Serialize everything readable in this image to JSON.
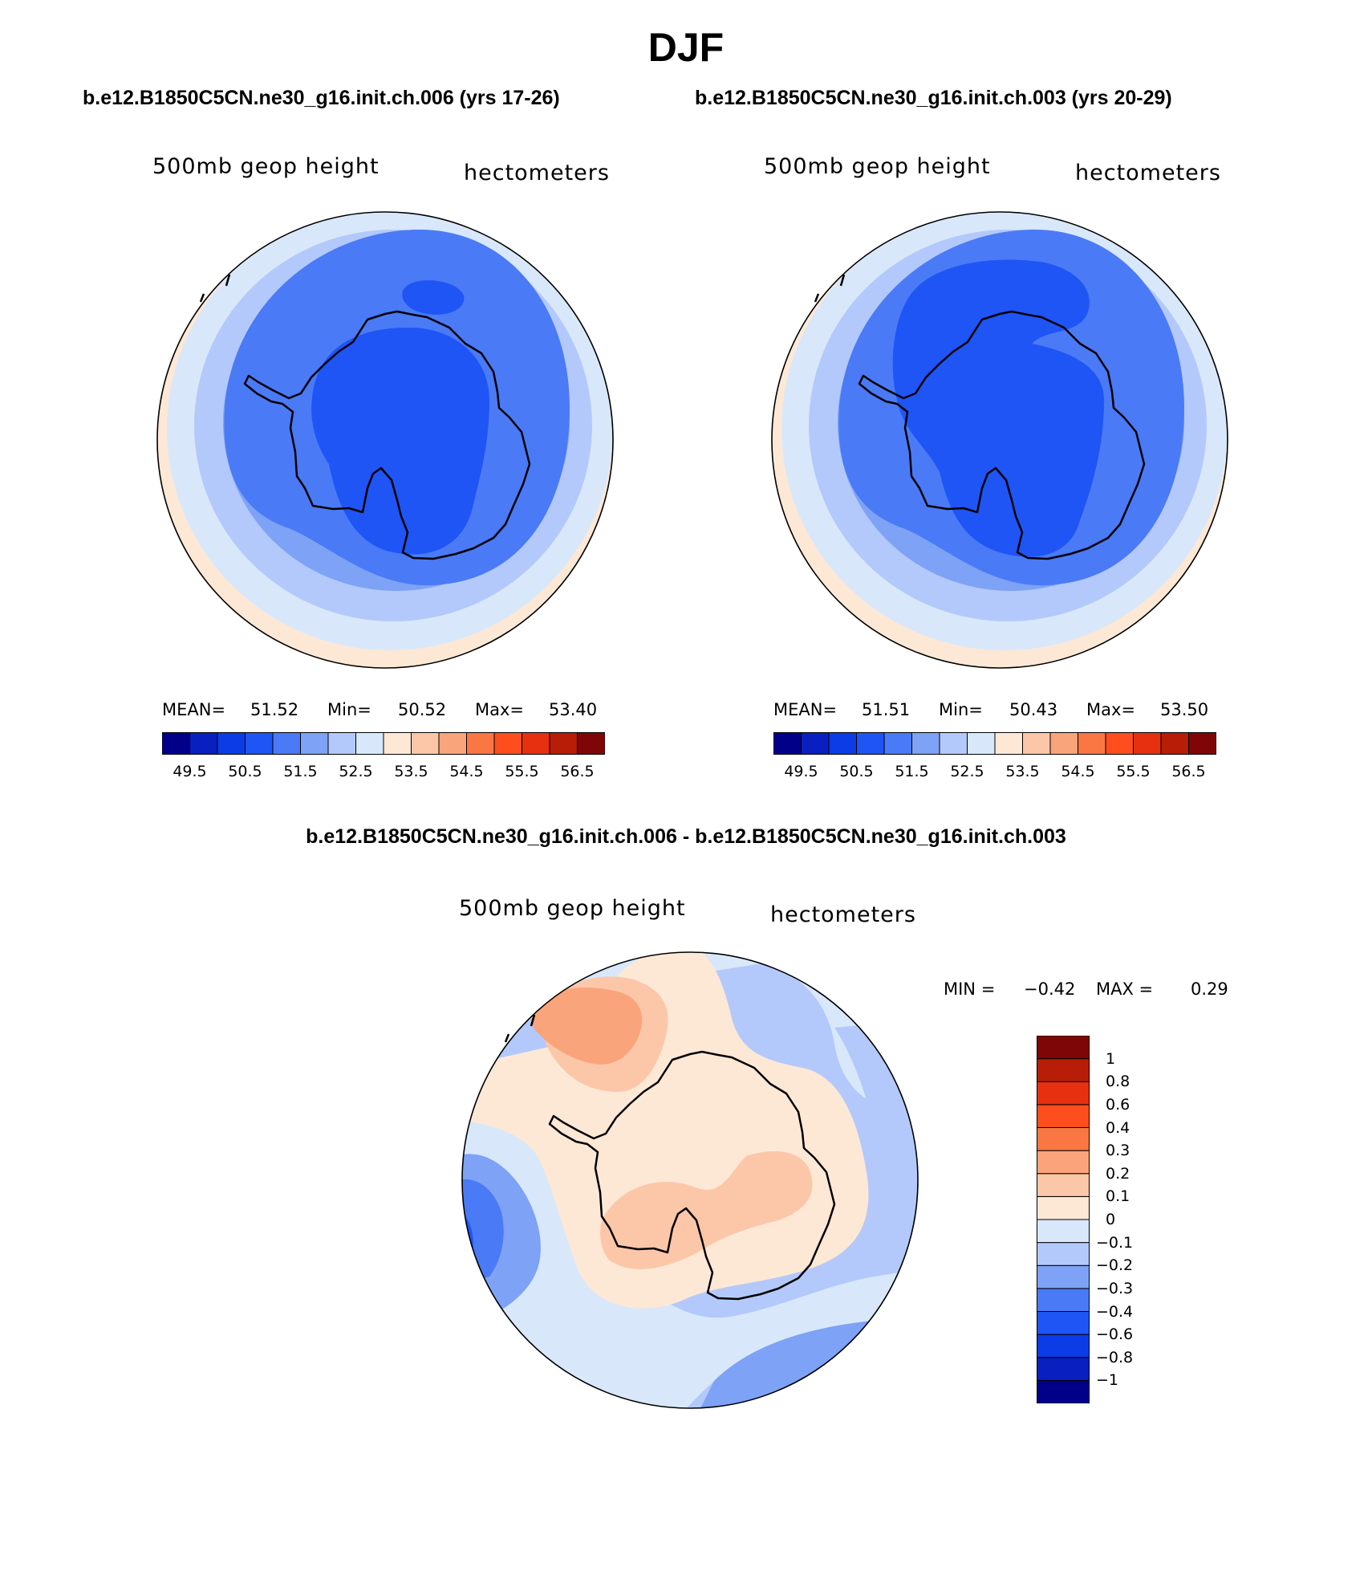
{
  "title": "DJF",
  "panels": [
    {
      "case_title": "b.e12.B1850C5CN.ne30_g16.init.ch.006 (yrs 17-26)",
      "left_label": "500mb geop height",
      "right_label": "hectometers",
      "stats": {
        "mean_label": "MEAN=",
        "mean": "51.52",
        "min_label": "Min=",
        "min": "50.52",
        "max_label": "Max=",
        "max": "53.40"
      }
    },
    {
      "case_title": "b.e12.B1850C5CN.ne30_g16.init.ch.003 (yrs 20-29)",
      "left_label": "500mb geop height",
      "right_label": "hectometers",
      "stats": {
        "mean_label": "MEAN=",
        "mean": "51.51",
        "min_label": "Min=",
        "min": "50.43",
        "max_label": "Max=",
        "max": "53.50"
      }
    }
  ],
  "diff_panel": {
    "title": "b.e12.B1850C5CN.ne30_g16.init.ch.006 - b.e12.B1850C5CN.ne30_g16.init.ch.003",
    "left_label": "500mb geop height",
    "right_label": "hectometers",
    "minmax": {
      "min_label": "MIN =",
      "min": "−0.42",
      "max_label": "MAX =",
      "max": "0.29"
    }
  },
  "colorbar": {
    "colors": [
      "#000088",
      "#0a1fbf",
      "#0b3ce6",
      "#1f55f5",
      "#4a7af5",
      "#7ea2f5",
      "#b3c9fb",
      "#d8e8fa",
      "#fde8d6",
      "#fcc7a9",
      "#f9a47a",
      "#fa7744",
      "#fe4e1d",
      "#e63010",
      "#b81d07",
      "#7e0606"
    ],
    "tick_labels": [
      "49.5",
      "50.5",
      "51.5",
      "52.5",
      "53.5",
      "54.5",
      "55.5",
      "56.5"
    ]
  },
  "diff_colorbar": {
    "colors": [
      "#000088",
      "#0a1fbf",
      "#0b3ce6",
      "#1f55f5",
      "#4a7af5",
      "#7ea2f5",
      "#b3c9fb",
      "#d8e8fa",
      "#fde8d6",
      "#fcc7a9",
      "#f9a47a",
      "#fa7744",
      "#fe4e1d",
      "#e63010",
      "#b81d07",
      "#7e0606"
    ],
    "tick_labels": [
      "−1",
      "−0.8",
      "−0.6",
      "−0.4",
      "−0.3",
      "−0.2",
      "−0.1",
      "0",
      "0.1",
      "0.2",
      "0.3",
      "0.4",
      "0.6",
      "0.8",
      "1"
    ]
  },
  "chart_data": [
    {
      "type": "heatmap",
      "title": "500mb geop height",
      "subtitle": "b.e12.B1850C5CN.ne30_g16.init.ch.006 (yrs 17-26)",
      "units": "hectometers",
      "projection": "south polar stereographic",
      "mean": 51.52,
      "min": 50.52,
      "max": 53.4,
      "contour_levels": [
        49.5,
        50,
        50.5,
        51,
        51.5,
        52,
        52.5,
        53,
        53.5,
        54,
        54.5,
        55,
        55.5,
        56,
        56.5
      ],
      "colorbar_ticks": [
        49.5,
        50.5,
        51.5,
        52.5,
        53.5,
        54.5,
        55.5,
        56.5
      ]
    },
    {
      "type": "heatmap",
      "title": "500mb geop height",
      "subtitle": "b.e12.B1850C5CN.ne30_g16.init.ch.003 (yrs 20-29)",
      "units": "hectometers",
      "projection": "south polar stereographic",
      "mean": 51.51,
      "min": 50.43,
      "max": 53.5,
      "contour_levels": [
        49.5,
        50,
        50.5,
        51,
        51.5,
        52,
        52.5,
        53,
        53.5,
        54,
        54.5,
        55,
        55.5,
        56,
        56.5
      ],
      "colorbar_ticks": [
        49.5,
        50.5,
        51.5,
        52.5,
        53.5,
        54.5,
        55.5,
        56.5
      ]
    },
    {
      "type": "heatmap",
      "title": "500mb geop height",
      "subtitle": "b.e12.B1850C5CN.ne30_g16.init.ch.006 - b.e12.B1850C5CN.ne30_g16.init.ch.003",
      "units": "hectometers",
      "projection": "south polar stereographic",
      "min": -0.42,
      "max": 0.29,
      "contour_levels": [
        -1,
        -0.8,
        -0.6,
        -0.4,
        -0.3,
        -0.2,
        -0.1,
        0,
        0.1,
        0.2,
        0.3,
        0.4,
        0.6,
        0.8,
        1
      ]
    }
  ]
}
